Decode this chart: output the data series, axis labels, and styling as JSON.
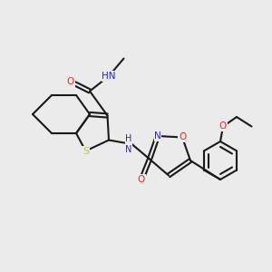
{
  "background_color": "#ebebeb",
  "bond_color": "#1a1a1a",
  "bond_width": 1.5,
  "atom_colors": {
    "N": "#2020ff",
    "O": "#ff2020",
    "S": "#c8c800",
    "C": "#1a1a1a",
    "H": "#4a9a9a"
  },
  "font_size": 7.5
}
